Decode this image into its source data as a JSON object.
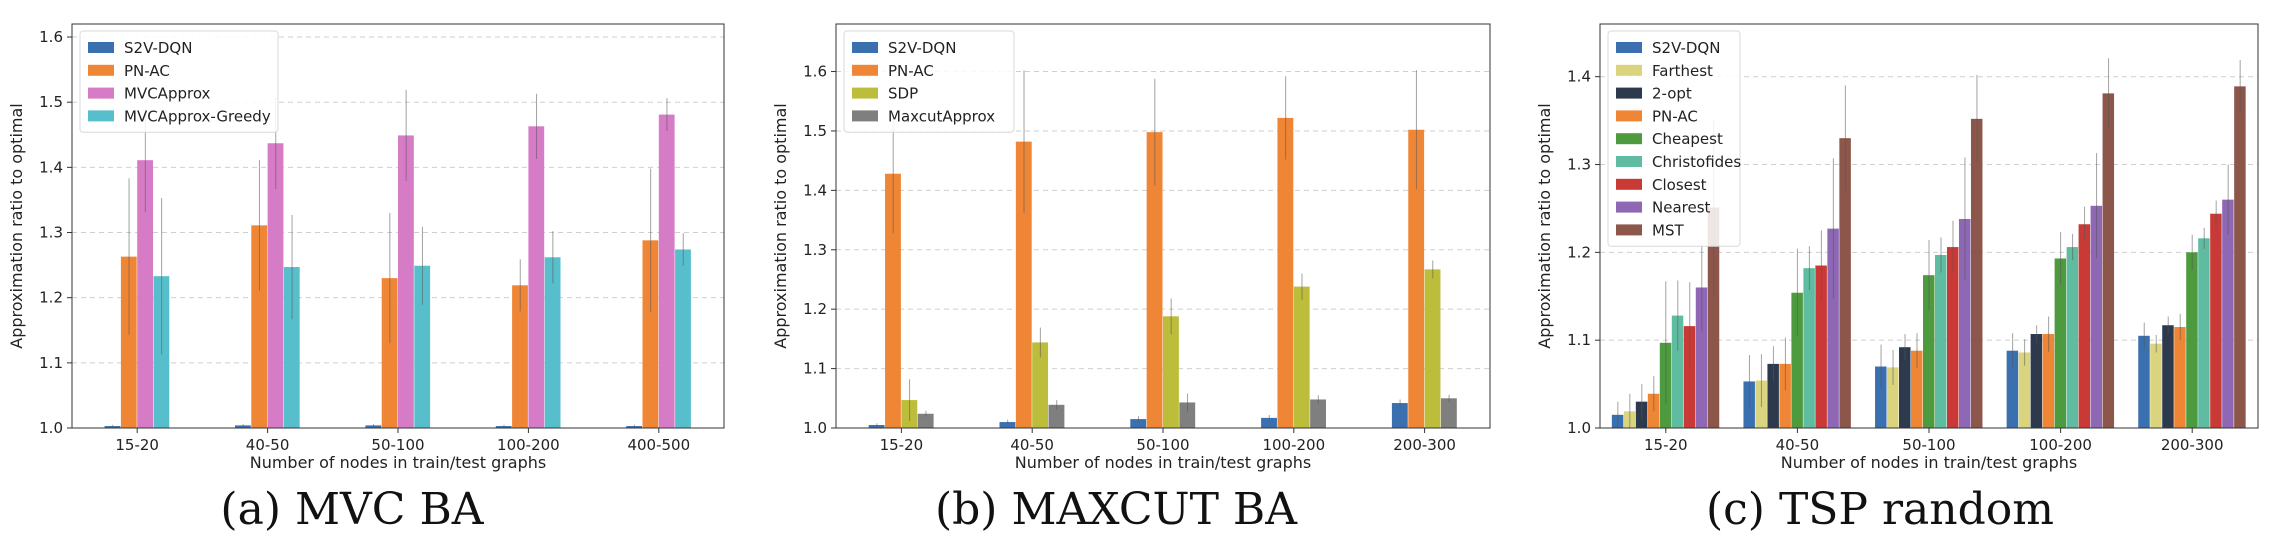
{
  "chart_data": [
    {
      "type": "bar",
      "caption": "(a) MVC BA",
      "xlabel": "Number of nodes in train/test graphs",
      "ylabel": "Approximation ratio to optimal",
      "ylim": [
        1.0,
        1.62
      ],
      "yticks": [
        "1.0",
        "1.1",
        "1.2",
        "1.3",
        "1.4",
        "1.5",
        "1.6"
      ],
      "grid": "horizontal dashed",
      "legend_position": "top-left",
      "categories": [
        "15-20",
        "40-50",
        "50-100",
        "100-200",
        "400-500"
      ],
      "series": [
        {
          "name": "S2V-DQN",
          "color": "#3a70b0",
          "values": [
            1.003,
            1.004,
            1.004,
            1.003,
            1.003
          ],
          "errors": [
            0.002,
            0.002,
            0.002,
            0.002,
            0.002
          ]
        },
        {
          "name": "PN-AC",
          "color": "#ef8636",
          "values": [
            1.263,
            1.311,
            1.23,
            1.219,
            1.288
          ],
          "errors": [
            0.12,
            0.1,
            0.1,
            0.04,
            0.11
          ]
        },
        {
          "name": "MVCApprox",
          "color": "#d67bc5",
          "values": [
            1.411,
            1.437,
            1.449,
            1.463,
            1.481
          ],
          "errors": [
            0.08,
            0.07,
            0.07,
            0.05,
            0.025
          ]
        },
        {
          "name": "MVCApprox-Greedy",
          "color": "#57bfcc",
          "values": [
            1.233,
            1.247,
            1.249,
            1.262,
            1.274
          ],
          "errors": [
            0.12,
            0.08,
            0.06,
            0.04,
            0.025
          ]
        }
      ]
    },
    {
      "type": "bar",
      "caption": "(b) MAXCUT BA",
      "xlabel": "Number of nodes in train/test graphs",
      "ylabel": "Approximation ratio to optimal",
      "ylim": [
        1.0,
        1.68
      ],
      "yticks": [
        "1.0",
        "1.1",
        "1.2",
        "1.3",
        "1.4",
        "1.5",
        "1.6"
      ],
      "grid": "horizontal dashed",
      "legend_position": "top-left",
      "categories": [
        "15-20",
        "40-50",
        "50-100",
        "100-200",
        "200-300"
      ],
      "series": [
        {
          "name": "S2V-DQN",
          "color": "#3a70b0",
          "values": [
            1.005,
            1.01,
            1.015,
            1.017,
            1.042
          ],
          "errors": [
            0.003,
            0.004,
            0.005,
            0.005,
            0.006
          ]
        },
        {
          "name": "PN-AC",
          "color": "#ef8636",
          "values": [
            1.428,
            1.482,
            1.498,
            1.522,
            1.502
          ],
          "errors": [
            0.1,
            0.12,
            0.09,
            0.07,
            0.1
          ]
        },
        {
          "name": "SDP",
          "color": "#bcbd3a",
          "values": [
            1.047,
            1.144,
            1.188,
            1.238,
            1.267
          ],
          "errors": [
            0.035,
            0.025,
            0.03,
            0.022,
            0.015
          ]
        },
        {
          "name": "MaxcutApprox",
          "color": "#7f7f7f",
          "values": [
            1.024,
            1.039,
            1.043,
            1.048,
            1.05
          ],
          "errors": [
            0.005,
            0.008,
            0.015,
            0.007,
            0.006
          ]
        }
      ]
    },
    {
      "type": "bar",
      "caption": "(c) TSP random",
      "xlabel": "Number of nodes in train/test graphs",
      "ylabel": "Approximation ratio to optimal",
      "ylim": [
        1.0,
        1.46
      ],
      "yticks": [
        "1.0",
        "1.1",
        "1.2",
        "1.3",
        "1.4"
      ],
      "grid": "horizontal dashed",
      "legend_position": "top-left",
      "categories": [
        "15-20",
        "40-50",
        "50-100",
        "100-200",
        "200-300"
      ],
      "series": [
        {
          "name": "S2V-DQN",
          "color": "#3a70b0",
          "values": [
            1.015,
            1.053,
            1.07,
            1.088,
            1.105
          ],
          "errors": [
            0.015,
            0.03,
            0.025,
            0.02,
            0.015
          ]
        },
        {
          "name": "Farthest",
          "color": "#dbd47f",
          "values": [
            1.019,
            1.054,
            1.069,
            1.086,
            1.096
          ],
          "errors": [
            0.02,
            0.03,
            0.02,
            0.015,
            0.01
          ]
        },
        {
          "name": "2-opt",
          "color": "#2d3a4e",
          "values": [
            1.03,
            1.073,
            1.092,
            1.107,
            1.117
          ],
          "errors": [
            0.02,
            0.02,
            0.015,
            0.01,
            0.01
          ]
        },
        {
          "name": "PN-AC",
          "color": "#ef8636",
          "values": [
            1.039,
            1.073,
            1.088,
            1.107,
            1.115
          ],
          "errors": [
            0.02,
            0.03,
            0.02,
            0.02,
            0.015
          ]
        },
        {
          "name": "Cheapest",
          "color": "#4d9a3f",
          "values": [
            1.097,
            1.154,
            1.174,
            1.193,
            1.2
          ],
          "errors": [
            0.07,
            0.05,
            0.04,
            0.03,
            0.02
          ]
        },
        {
          "name": "Christofides",
          "color": "#5fbca0",
          "values": [
            1.128,
            1.182,
            1.197,
            1.206,
            1.216
          ],
          "errors": [
            0.04,
            0.025,
            0.02,
            0.015,
            0.012
          ]
        },
        {
          "name": "Closest",
          "color": "#c93a36",
          "values": [
            1.116,
            1.185,
            1.206,
            1.232,
            1.244
          ],
          "errors": [
            0.05,
            0.04,
            0.03,
            0.02,
            0.015
          ]
        },
        {
          "name": "Nearest",
          "color": "#8e68b4",
          "values": [
            1.16,
            1.227,
            1.238,
            1.253,
            1.26
          ],
          "errors": [
            0.05,
            0.08,
            0.07,
            0.06,
            0.04
          ]
        },
        {
          "name": "MST",
          "color": "#8c564b",
          "values": [
            1.251,
            1.33,
            1.352,
            1.381,
            1.389
          ],
          "errors": [
            0.1,
            0.06,
            0.05,
            0.04,
            0.03
          ]
        }
      ]
    }
  ]
}
